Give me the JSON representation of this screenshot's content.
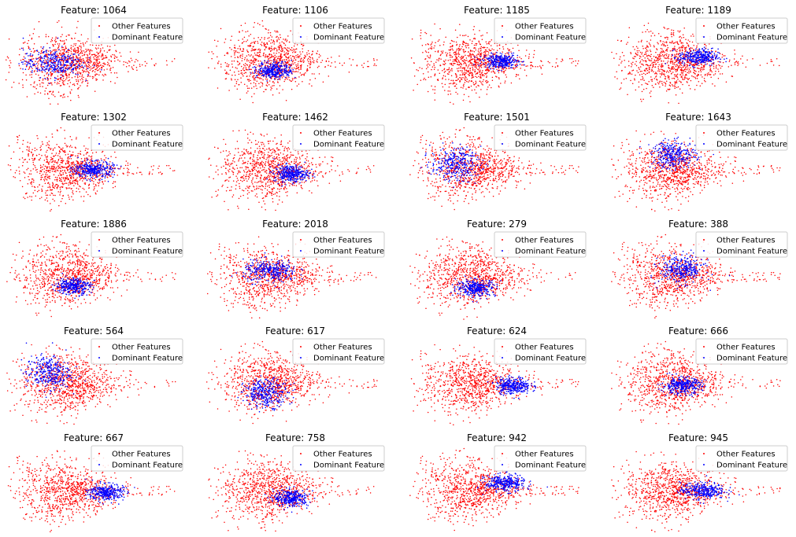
{
  "legend": {
    "other_label": "Other Features",
    "dominant_label": "Dominant Feature",
    "location": "upper right"
  },
  "colors": {
    "other": "#ff0000",
    "dominant": "#0000ff",
    "legend_border": "#cccccc"
  },
  "chart_data": {
    "type": "scatter",
    "layout": "5x4 grid of subplots",
    "axes_visible": false,
    "grid": false,
    "series": [
      {
        "name": "Other Features",
        "color": "#ff0000"
      },
      {
        "name": "Dominant Feature",
        "color": "#0000ff"
      }
    ],
    "shared_cloud": {
      "center": [
        0.0,
        0.0
      ],
      "spread": [
        1.0,
        0.6
      ],
      "shape": "teardrop tapering to the right"
    },
    "panels": [
      {
        "title": "Feature: 1064",
        "dominant_center": [
          -0.5,
          0.0
        ],
        "dominant_spread": [
          0.6,
          0.25
        ]
      },
      {
        "title": "Feature: 1106",
        "dominant_center": [
          0.0,
          -0.2
        ],
        "dominant_spread": [
          0.35,
          0.15
        ]
      },
      {
        "title": "Feature: 1185",
        "dominant_center": [
          0.6,
          0.05
        ],
        "dominant_spread": [
          0.35,
          0.12
        ]
      },
      {
        "title": "Feature: 1189",
        "dominant_center": [
          0.5,
          0.15
        ],
        "dominant_spread": [
          0.4,
          0.15
        ]
      },
      {
        "title": "Feature: 1302",
        "dominant_center": [
          0.5,
          0.0
        ],
        "dominant_spread": [
          0.4,
          0.15
        ]
      },
      {
        "title": "Feature: 1462",
        "dominant_center": [
          0.4,
          -0.1
        ],
        "dominant_spread": [
          0.35,
          0.15
        ]
      },
      {
        "title": "Feature: 1501",
        "dominant_center": [
          -0.5,
          0.15
        ],
        "dominant_spread": [
          0.5,
          0.3
        ]
      },
      {
        "title": "Feature: 1643",
        "dominant_center": [
          -0.1,
          0.4
        ],
        "dominant_spread": [
          0.45,
          0.25
        ]
      },
      {
        "title": "Feature: 1886",
        "dominant_center": [
          0.0,
          -0.25
        ],
        "dominant_spread": [
          0.35,
          0.15
        ]
      },
      {
        "title": "Feature: 2018",
        "dominant_center": [
          -0.1,
          0.15
        ],
        "dominant_spread": [
          0.55,
          0.2
        ]
      },
      {
        "title": "Feature: 279",
        "dominant_center": [
          0.0,
          -0.3
        ],
        "dominant_spread": [
          0.4,
          0.15
        ]
      },
      {
        "title": "Feature: 388",
        "dominant_center": [
          0.1,
          0.2
        ],
        "dominant_spread": [
          0.45,
          0.25
        ]
      },
      {
        "title": "Feature: 564",
        "dominant_center": [
          -0.6,
          0.3
        ],
        "dominant_spread": [
          0.45,
          0.3
        ]
      },
      {
        "title": "Feature: 617",
        "dominant_center": [
          -0.2,
          -0.25
        ],
        "dominant_spread": [
          0.45,
          0.25
        ]
      },
      {
        "title": "Feature: 624",
        "dominant_center": [
          0.9,
          -0.05
        ],
        "dominant_spread": [
          0.35,
          0.15
        ]
      },
      {
        "title": "Feature: 666",
        "dominant_center": [
          0.1,
          -0.05
        ],
        "dominant_spread": [
          0.4,
          0.15
        ]
      },
      {
        "title": "Feature: 667",
        "dominant_center": [
          0.8,
          -0.05
        ],
        "dominant_spread": [
          0.35,
          0.15
        ]
      },
      {
        "title": "Feature: 758",
        "dominant_center": [
          0.4,
          -0.2
        ],
        "dominant_spread": [
          0.35,
          0.15
        ]
      },
      {
        "title": "Feature: 942",
        "dominant_center": [
          0.7,
          0.2
        ],
        "dominant_spread": [
          0.4,
          0.15
        ]
      },
      {
        "title": "Feature: 945",
        "dominant_center": [
          0.6,
          0.0
        ],
        "dominant_spread": [
          0.45,
          0.15
        ]
      }
    ]
  }
}
